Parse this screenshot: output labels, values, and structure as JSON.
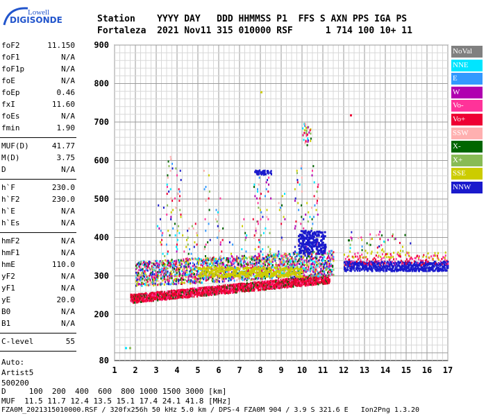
{
  "logo": {
    "top": "Lowell",
    "main": "DIGISONDE"
  },
  "header": {
    "row1": "Station    YYYY DAY   DDD HHMMSS P1  FFS S AXN PPS IGA PS",
    "row2": "Fortaleza  2021 Nov11 315 010000 RSF      1 714 100 10+ 11"
  },
  "params": {
    "group1": [
      {
        "label": "foF2",
        "value": "11.150"
      },
      {
        "label": "foF1",
        "value": "N/A"
      },
      {
        "label": "foF1p",
        "value": "N/A"
      },
      {
        "label": "foE",
        "value": "N/A"
      },
      {
        "label": "foEp",
        "value": "0.46"
      },
      {
        "label": "fxI",
        "value": "11.60"
      },
      {
        "label": "foEs",
        "value": "N/A"
      },
      {
        "label": "fmin",
        "value": "1.90"
      }
    ],
    "group2": [
      {
        "label": "MUF(D)",
        "value": "41.77"
      },
      {
        "label": "M(D)",
        "value": "3.75"
      },
      {
        "label": "D",
        "value": "N/A"
      }
    ],
    "group3": [
      {
        "label": "h`F",
        "value": "230.0"
      },
      {
        "label": "h`F2",
        "value": "230.0"
      },
      {
        "label": "h`E",
        "value": "N/A"
      },
      {
        "label": "h`Es",
        "value": "N/A"
      }
    ],
    "group4": [
      {
        "label": "hmF2",
        "value": "N/A"
      },
      {
        "label": "hmF1",
        "value": "N/A"
      },
      {
        "label": "hmE",
        "value": "110.0"
      },
      {
        "label": "yF2",
        "value": "N/A"
      },
      {
        "label": "yF1",
        "value": "N/A"
      },
      {
        "label": "yE",
        "value": "20.0"
      },
      {
        "label": "B0",
        "value": "N/A"
      },
      {
        "label": "B1",
        "value": "N/A"
      }
    ],
    "clevel": {
      "label": "C-level",
      "value": "55"
    },
    "auto": [
      "Auto:",
      "Artist5",
      "500200"
    ]
  },
  "bottom": {
    "line1": "D     100  200  400  600  800 1000 1500 3000 [km]",
    "line2": "MUF  11.5 11.7 12.4 13.5 15.1 17.4 24.1 41.8 [MHz]",
    "line3": "FZA0M_2021315010000.RSF / 320fx256h 50 kHz 5.0 km / DPS-4 FZA0M 904 / 3.9 S 321.6 E   Ion2Png 1.3.20"
  },
  "chart_data": {
    "type": "scatter",
    "title": "",
    "xlabel": "",
    "ylabel": "",
    "xlim": [
      1,
      17
    ],
    "ylim": [
      80,
      900
    ],
    "grid": true,
    "legend_position": "right",
    "x_ticks": [
      1,
      2,
      3,
      4,
      5,
      6,
      7,
      8,
      9,
      10,
      11,
      12,
      13,
      14,
      15,
      16,
      17
    ],
    "y_ticks": [
      80,
      200,
      300,
      400,
      500,
      600,
      700,
      800,
      900
    ],
    "legend": [
      {
        "name": "NoVal",
        "color": "#808080"
      },
      {
        "name": "NNE",
        "color": "#00e5ff"
      },
      {
        "name": "E",
        "color": "#3399ff"
      },
      {
        "name": "W",
        "color": "#b000b0"
      },
      {
        "name": "Vo-",
        "color": "#ff3399"
      },
      {
        "name": "Vo+",
        "color": "#ee0033"
      },
      {
        "name": "SSW",
        "color": "#ffb0b0"
      },
      {
        "name": "X-",
        "color": "#006600"
      },
      {
        "name": "X+",
        "color": "#88bb55"
      },
      {
        "name": "SSE",
        "color": "#cccc00"
      },
      {
        "name": "NNW",
        "color": "#1a1acc"
      }
    ],
    "series": [
      {
        "name": "Vo+",
        "trace": [
          [
            1.8,
            232
          ],
          [
            3,
            240
          ],
          [
            4,
            245
          ],
          [
            5,
            248
          ],
          [
            6,
            252
          ],
          [
            7,
            256
          ],
          [
            8,
            262
          ],
          [
            9,
            268
          ],
          [
            10,
            275
          ],
          [
            11,
            285
          ]
        ]
      },
      {
        "name": "SSE",
        "trace": [
          [
            2.5,
            300
          ],
          [
            4,
            305
          ],
          [
            6,
            310
          ],
          [
            8,
            315
          ],
          [
            10,
            325
          ],
          [
            11.5,
            335
          ]
        ]
      },
      {
        "name": "NNW",
        "trace": [
          [
            12,
            330
          ],
          [
            13,
            328
          ],
          [
            14,
            326
          ],
          [
            15,
            325
          ],
          [
            16,
            324
          ],
          [
            17,
            324
          ]
        ]
      }
    ],
    "point_samples": [
      {
        "x": 1.5,
        "y": 115,
        "series": "NNE"
      },
      {
        "x": 1.7,
        "y": 115,
        "series": "X+"
      },
      {
        "x": 8.0,
        "y": 780,
        "series": "SSE"
      },
      {
        "x": 12.2,
        "y": 395,
        "series": "X-"
      },
      {
        "x": 12.3,
        "y": 720,
        "series": "Vo+"
      }
    ]
  }
}
